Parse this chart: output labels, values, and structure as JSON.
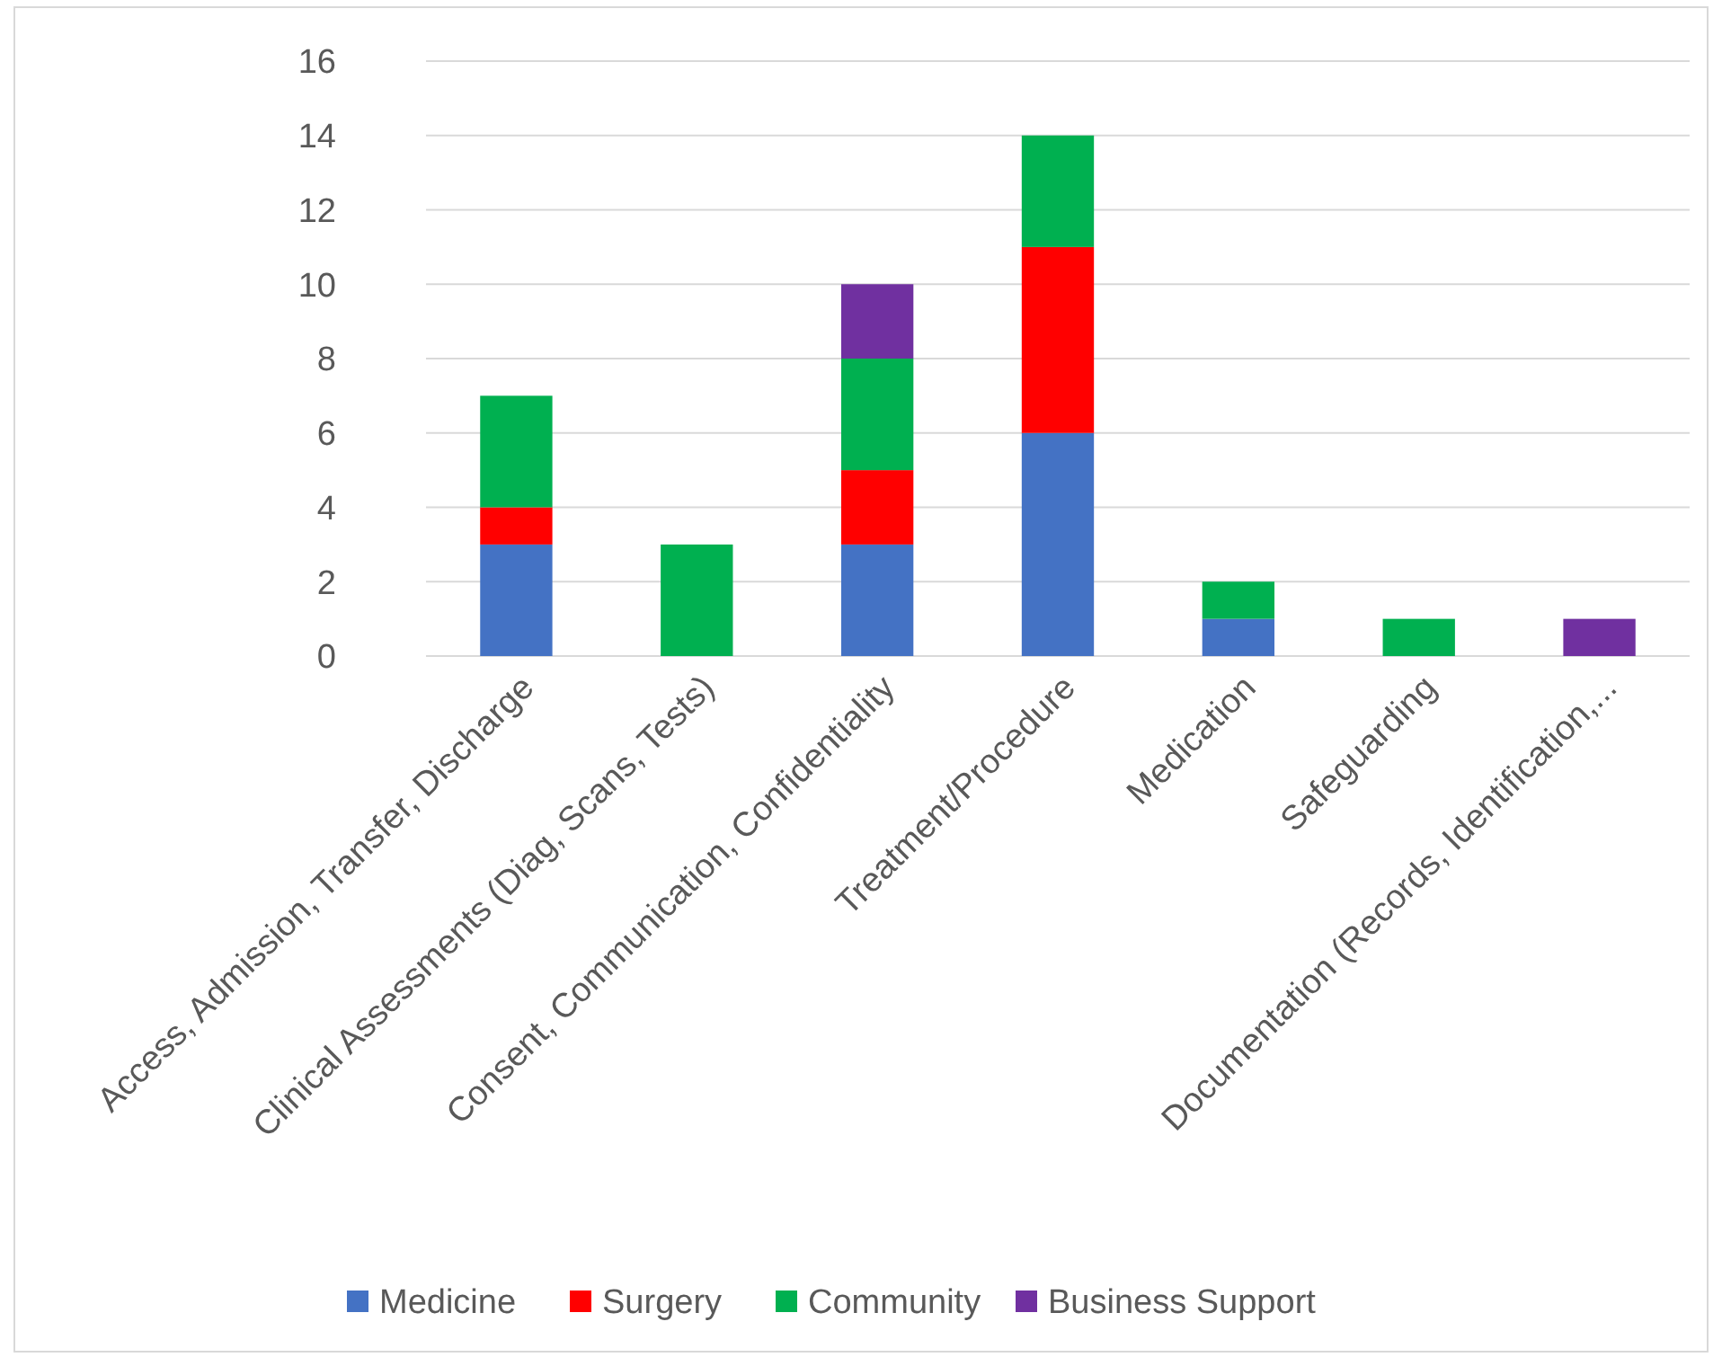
{
  "chart_data": {
    "type": "bar",
    "stacked": true,
    "categories": [
      "Access, Admission, Transfer, Discharge",
      "Clinical Assessments (Diag, Scans, Tests)",
      "Consent, Communication, Confidentiality",
      "Treatment/Procedure",
      "Medication",
      "Safeguarding",
      "Documentation (Records, Identification,..."
    ],
    "series": [
      {
        "name": "Medicine",
        "color": "#4472c4",
        "values": [
          3,
          0,
          3,
          6,
          1,
          0,
          0
        ]
      },
      {
        "name": "Surgery",
        "color": "#ff0000",
        "values": [
          1,
          0,
          2,
          5,
          0,
          0,
          0
        ]
      },
      {
        "name": "Community",
        "color": "#00b050",
        "values": [
          3,
          3,
          3,
          3,
          1,
          1,
          0
        ]
      },
      {
        "name": "Business Support",
        "color": "#7030a0",
        "values": [
          0,
          0,
          2,
          0,
          0,
          0,
          1
        ]
      }
    ],
    "ylim": [
      0,
      16
    ],
    "yticks": [
      0,
      2,
      4,
      6,
      8,
      10,
      12,
      14,
      16
    ],
    "grid": "y",
    "legend": "bottom"
  }
}
